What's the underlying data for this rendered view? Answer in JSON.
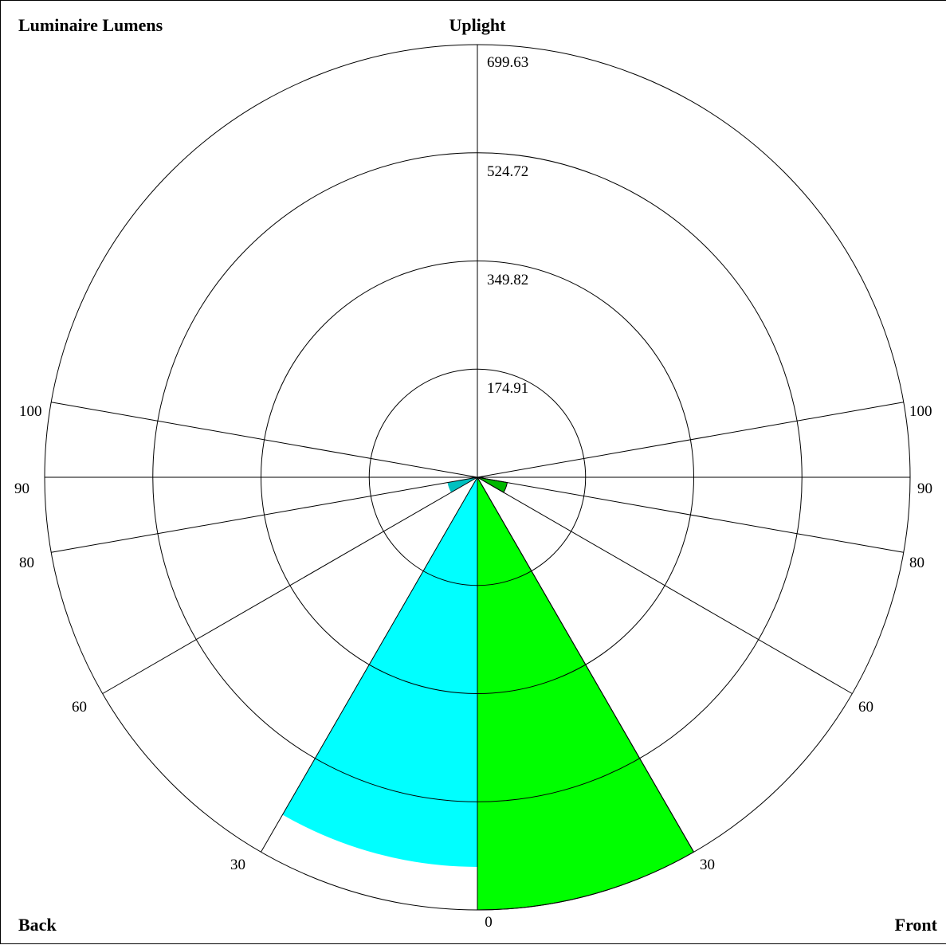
{
  "chart_data": {
    "type": "polar-wedge",
    "title": "Luminaire Lumens",
    "labels": {
      "top": "Uplight",
      "bottom_left": "Back",
      "bottom_right": "Front"
    },
    "radial_max": 699.63,
    "ring_values": [
      174.91,
      349.82,
      524.72,
      699.63
    ],
    "ring_labels": [
      "174.91",
      "349.82",
      "524.72",
      "699.63"
    ],
    "angle_labels": {
      "left": [
        "100",
        "90",
        "80",
        "60",
        "30"
      ],
      "right": [
        "100",
        "90",
        "80",
        "60",
        "30"
      ],
      "bottom": "0"
    },
    "spoke_angles_deg": [
      0,
      30,
      60,
      80,
      90,
      100
    ],
    "sectors": [
      {
        "side": "front",
        "zone": "0-30",
        "value": 699.63,
        "color": "#00ff00"
      },
      {
        "side": "front",
        "zone": "60-80",
        "value": 49.0,
        "color": "#00b800"
      },
      {
        "side": "back",
        "zone": "0-30",
        "value": 630.0,
        "color": "#00ffff"
      },
      {
        "side": "back",
        "zone": "60-80",
        "value": 49.0,
        "color": "#00c0c0"
      }
    ]
  }
}
